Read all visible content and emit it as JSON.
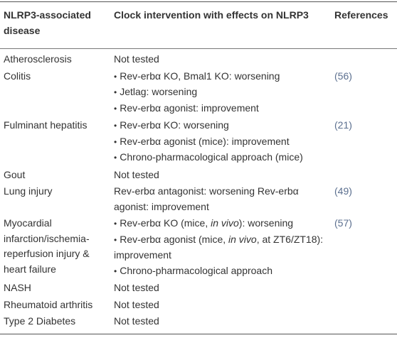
{
  "table": {
    "header": [
      "NLRP3-associated disease",
      "Clock intervention with effects on NLRP3",
      "References"
    ],
    "rows": [
      [
        "Atherosclerosis",
        "Not tested",
        null
      ],
      [
        "Colitis",
        [
          "Rev-erbα KO, Bmal1 KO: worsening",
          "Jetlag: worsening",
          "Rev-erbα agonist: improvement"
        ],
        "(56)"
      ],
      [
        "Fulminant hepatitis",
        [
          "Rev-erbα KO: worsening",
          "Rev-erbα agonist (mice): improvement",
          "Chrono-pharmacological approach (mice)"
        ],
        "(21)"
      ],
      [
        "Gout",
        "Not tested",
        null
      ],
      [
        "Lung injury",
        "Rev-erbα antagonist: worsening Rev-erbα agonist: improvement",
        "(49)"
      ],
      [
        "Myocardial infarction/ischemia-reperfusion injury & heart failure",
        [
          [
            "Rev-erbα KO (mice, ",
            "in vivo",
            "): worsening"
          ],
          [
            "Rev-erbα agonist (mice, ",
            "in vivo",
            ", at ZT6/ZT18): improvement"
          ],
          "Chrono-pharmacological approach"
        ],
        "(57)"
      ],
      [
        "NASH",
        "Not tested",
        null
      ],
      [
        "Rheumatoid arthritis",
        "Not tested",
        null
      ],
      [
        "Type 2 Diabetes",
        "Not tested",
        null
      ]
    ]
  }
}
